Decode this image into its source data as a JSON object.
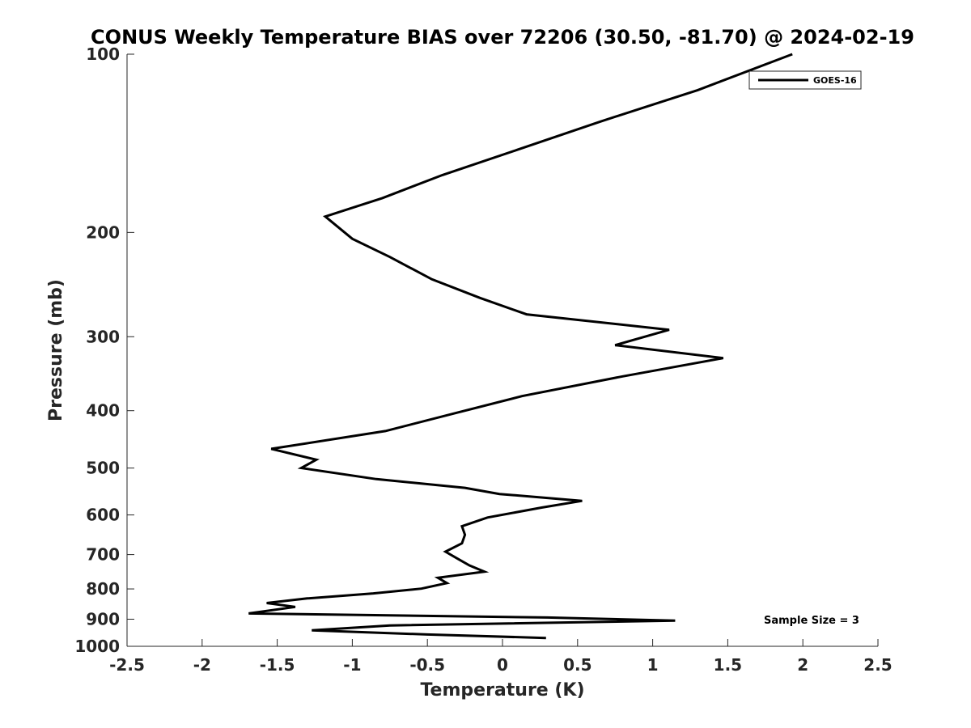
{
  "chart_data": {
    "type": "line",
    "title": "CONUS Weekly Temperature BIAS over 72206 (30.50, -81.70) @ 2024-02-19",
    "xlabel": "Temperature (K)",
    "ylabel": "Pressure (mb)",
    "xlim": [
      -2.5,
      2.5
    ],
    "ylim": [
      1000,
      100
    ],
    "y_scale": "log",
    "y_reversed": true,
    "x_ticks": [
      -2.5,
      -2,
      -1.5,
      -1,
      -0.5,
      0,
      0.5,
      1,
      1.5,
      2,
      2.5
    ],
    "x_tick_labels": [
      "-2.5",
      "-2",
      "-1.5",
      "-1",
      "-0.5",
      "0",
      "0.5",
      "1",
      "1.5",
      "2",
      "2.5"
    ],
    "y_ticks": [
      100,
      200,
      300,
      400,
      500,
      600,
      700,
      800,
      900,
      1000
    ],
    "y_tick_labels": [
      "100",
      "200",
      "300",
      "400",
      "500",
      "600",
      "700",
      "800",
      "900",
      "1000"
    ],
    "grid": false,
    "legend": {
      "position": "top-right"
    },
    "annotation": "Sample Size = 3",
    "series": [
      {
        "name": "GOES-16",
        "color": "#000000",
        "points": [
          {
            "x": 1.93,
            "p": 100
          },
          {
            "x": 1.3,
            "p": 115
          },
          {
            "x": 0.65,
            "p": 130
          },
          {
            "x": 0.1,
            "p": 145
          },
          {
            "x": -0.4,
            "p": 160
          },
          {
            "x": -0.8,
            "p": 175
          },
          {
            "x": -1.18,
            "p": 188
          },
          {
            "x": -1.0,
            "p": 205
          },
          {
            "x": -0.75,
            "p": 220
          },
          {
            "x": -0.47,
            "p": 240
          },
          {
            "x": -0.15,
            "p": 258
          },
          {
            "x": 0.16,
            "p": 275
          },
          {
            "x": 1.11,
            "p": 292
          },
          {
            "x": 0.75,
            "p": 310
          },
          {
            "x": 1.47,
            "p": 326
          },
          {
            "x": 0.8,
            "p": 350
          },
          {
            "x": 0.13,
            "p": 378
          },
          {
            "x": -0.3,
            "p": 403
          },
          {
            "x": -0.78,
            "p": 433
          },
          {
            "x": -1.54,
            "p": 464
          },
          {
            "x": -1.24,
            "p": 484
          },
          {
            "x": -1.34,
            "p": 500
          },
          {
            "x": -0.84,
            "p": 522
          },
          {
            "x": -0.25,
            "p": 540
          },
          {
            "x": -0.02,
            "p": 553
          },
          {
            "x": 0.53,
            "p": 568
          },
          {
            "x": 0.26,
            "p": 583
          },
          {
            "x": -0.1,
            "p": 606
          },
          {
            "x": -0.27,
            "p": 627
          },
          {
            "x": -0.25,
            "p": 648
          },
          {
            "x": -0.27,
            "p": 670
          },
          {
            "x": -0.38,
            "p": 692
          },
          {
            "x": -0.3,
            "p": 711
          },
          {
            "x": -0.22,
            "p": 730
          },
          {
            "x": -0.12,
            "p": 748
          },
          {
            "x": -0.43,
            "p": 766
          },
          {
            "x": -0.37,
            "p": 782
          },
          {
            "x": -0.54,
            "p": 799
          },
          {
            "x": -0.86,
            "p": 814
          },
          {
            "x": -1.3,
            "p": 830
          },
          {
            "x": -1.57,
            "p": 845
          },
          {
            "x": -1.38,
            "p": 858
          },
          {
            "x": -1.69,
            "p": 880
          },
          {
            "x": 0.3,
            "p": 894
          },
          {
            "x": 1.15,
            "p": 905
          },
          {
            "x": -0.75,
            "p": 922
          },
          {
            "x": -1.27,
            "p": 940
          },
          {
            "x": -0.5,
            "p": 955
          },
          {
            "x": 0.29,
            "p": 968
          }
        ]
      }
    ]
  }
}
